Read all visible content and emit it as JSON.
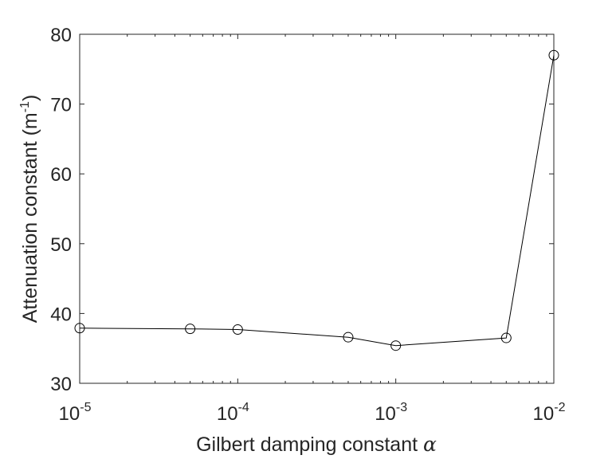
{
  "chart_data": {
    "type": "line",
    "title": "",
    "xlabel": "Gilbert damping constant",
    "xlabel_symbol": "α",
    "ylabel": "Attenuation constant (m",
    "ylabel_exponent": "-1",
    "ylabel_close": ")",
    "x_scale": "log",
    "xlim": [
      1e-05,
      0.01
    ],
    "ylim": [
      30,
      80
    ],
    "x_ticks": [
      {
        "value": 1e-05,
        "base": "10",
        "exponent": "-5"
      },
      {
        "value": 0.0001,
        "base": "10",
        "exponent": "-4"
      },
      {
        "value": 0.001,
        "base": "10",
        "exponent": "-3"
      },
      {
        "value": 0.01,
        "base": "10",
        "exponent": "-2"
      }
    ],
    "y_ticks": [
      "30",
      "40",
      "50",
      "60",
      "70",
      "80"
    ],
    "grid": false,
    "series": [
      {
        "marker": "open-circle",
        "color": "#000000",
        "x": [
          1e-05,
          5e-05,
          0.0001,
          0.0005,
          0.001,
          0.005,
          0.01
        ],
        "y": [
          37.9,
          37.8,
          37.7,
          36.6,
          35.4,
          36.5,
          77.0
        ]
      }
    ]
  }
}
